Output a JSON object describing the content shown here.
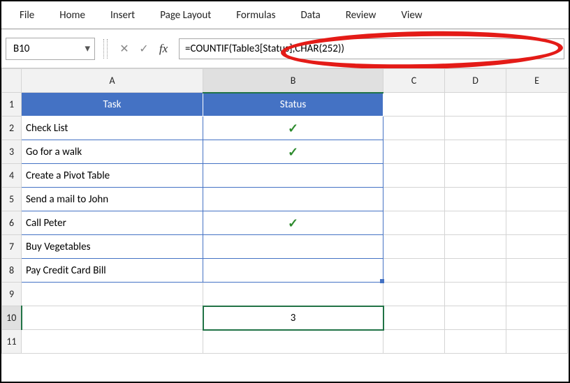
{
  "ribbon": {
    "items": [
      "File",
      "Home",
      "Insert",
      "Page Layout",
      "Formulas",
      "Data",
      "Review",
      "View"
    ]
  },
  "namebox": {
    "value": "B10",
    "chevron": "▾"
  },
  "fbar": {
    "cancel_glyph": "✕",
    "confirm_glyph": "✓",
    "fx_label": "fx",
    "formula": "=COUNTIF(Table3[Status],CHAR(252))"
  },
  "columns": [
    "A",
    "B",
    "C",
    "D",
    "E"
  ],
  "row_count": 11,
  "table": {
    "header_bg": "#4472c4",
    "header_fg": "#ffffff",
    "border_color": "#4472c4",
    "headers": {
      "A": "Task",
      "B": "Status"
    },
    "rows": [
      {
        "task": "Check List",
        "status": "✓"
      },
      {
        "task": "Go for a walk",
        "status": "✓"
      },
      {
        "task": "Create a Pivot Table",
        "status": ""
      },
      {
        "task": "Send a mail to John",
        "status": ""
      },
      {
        "task": "Call Peter",
        "status": "✓"
      },
      {
        "task": "Buy Vegetables",
        "status": ""
      },
      {
        "task": "Pay Credit Card Bill",
        "status": ""
      }
    ],
    "check_color": "#2e8b2e"
  },
  "result_cell": {
    "address": "B10",
    "value": "3"
  },
  "annotation": {
    "ellipse_color": "#e41b17"
  }
}
